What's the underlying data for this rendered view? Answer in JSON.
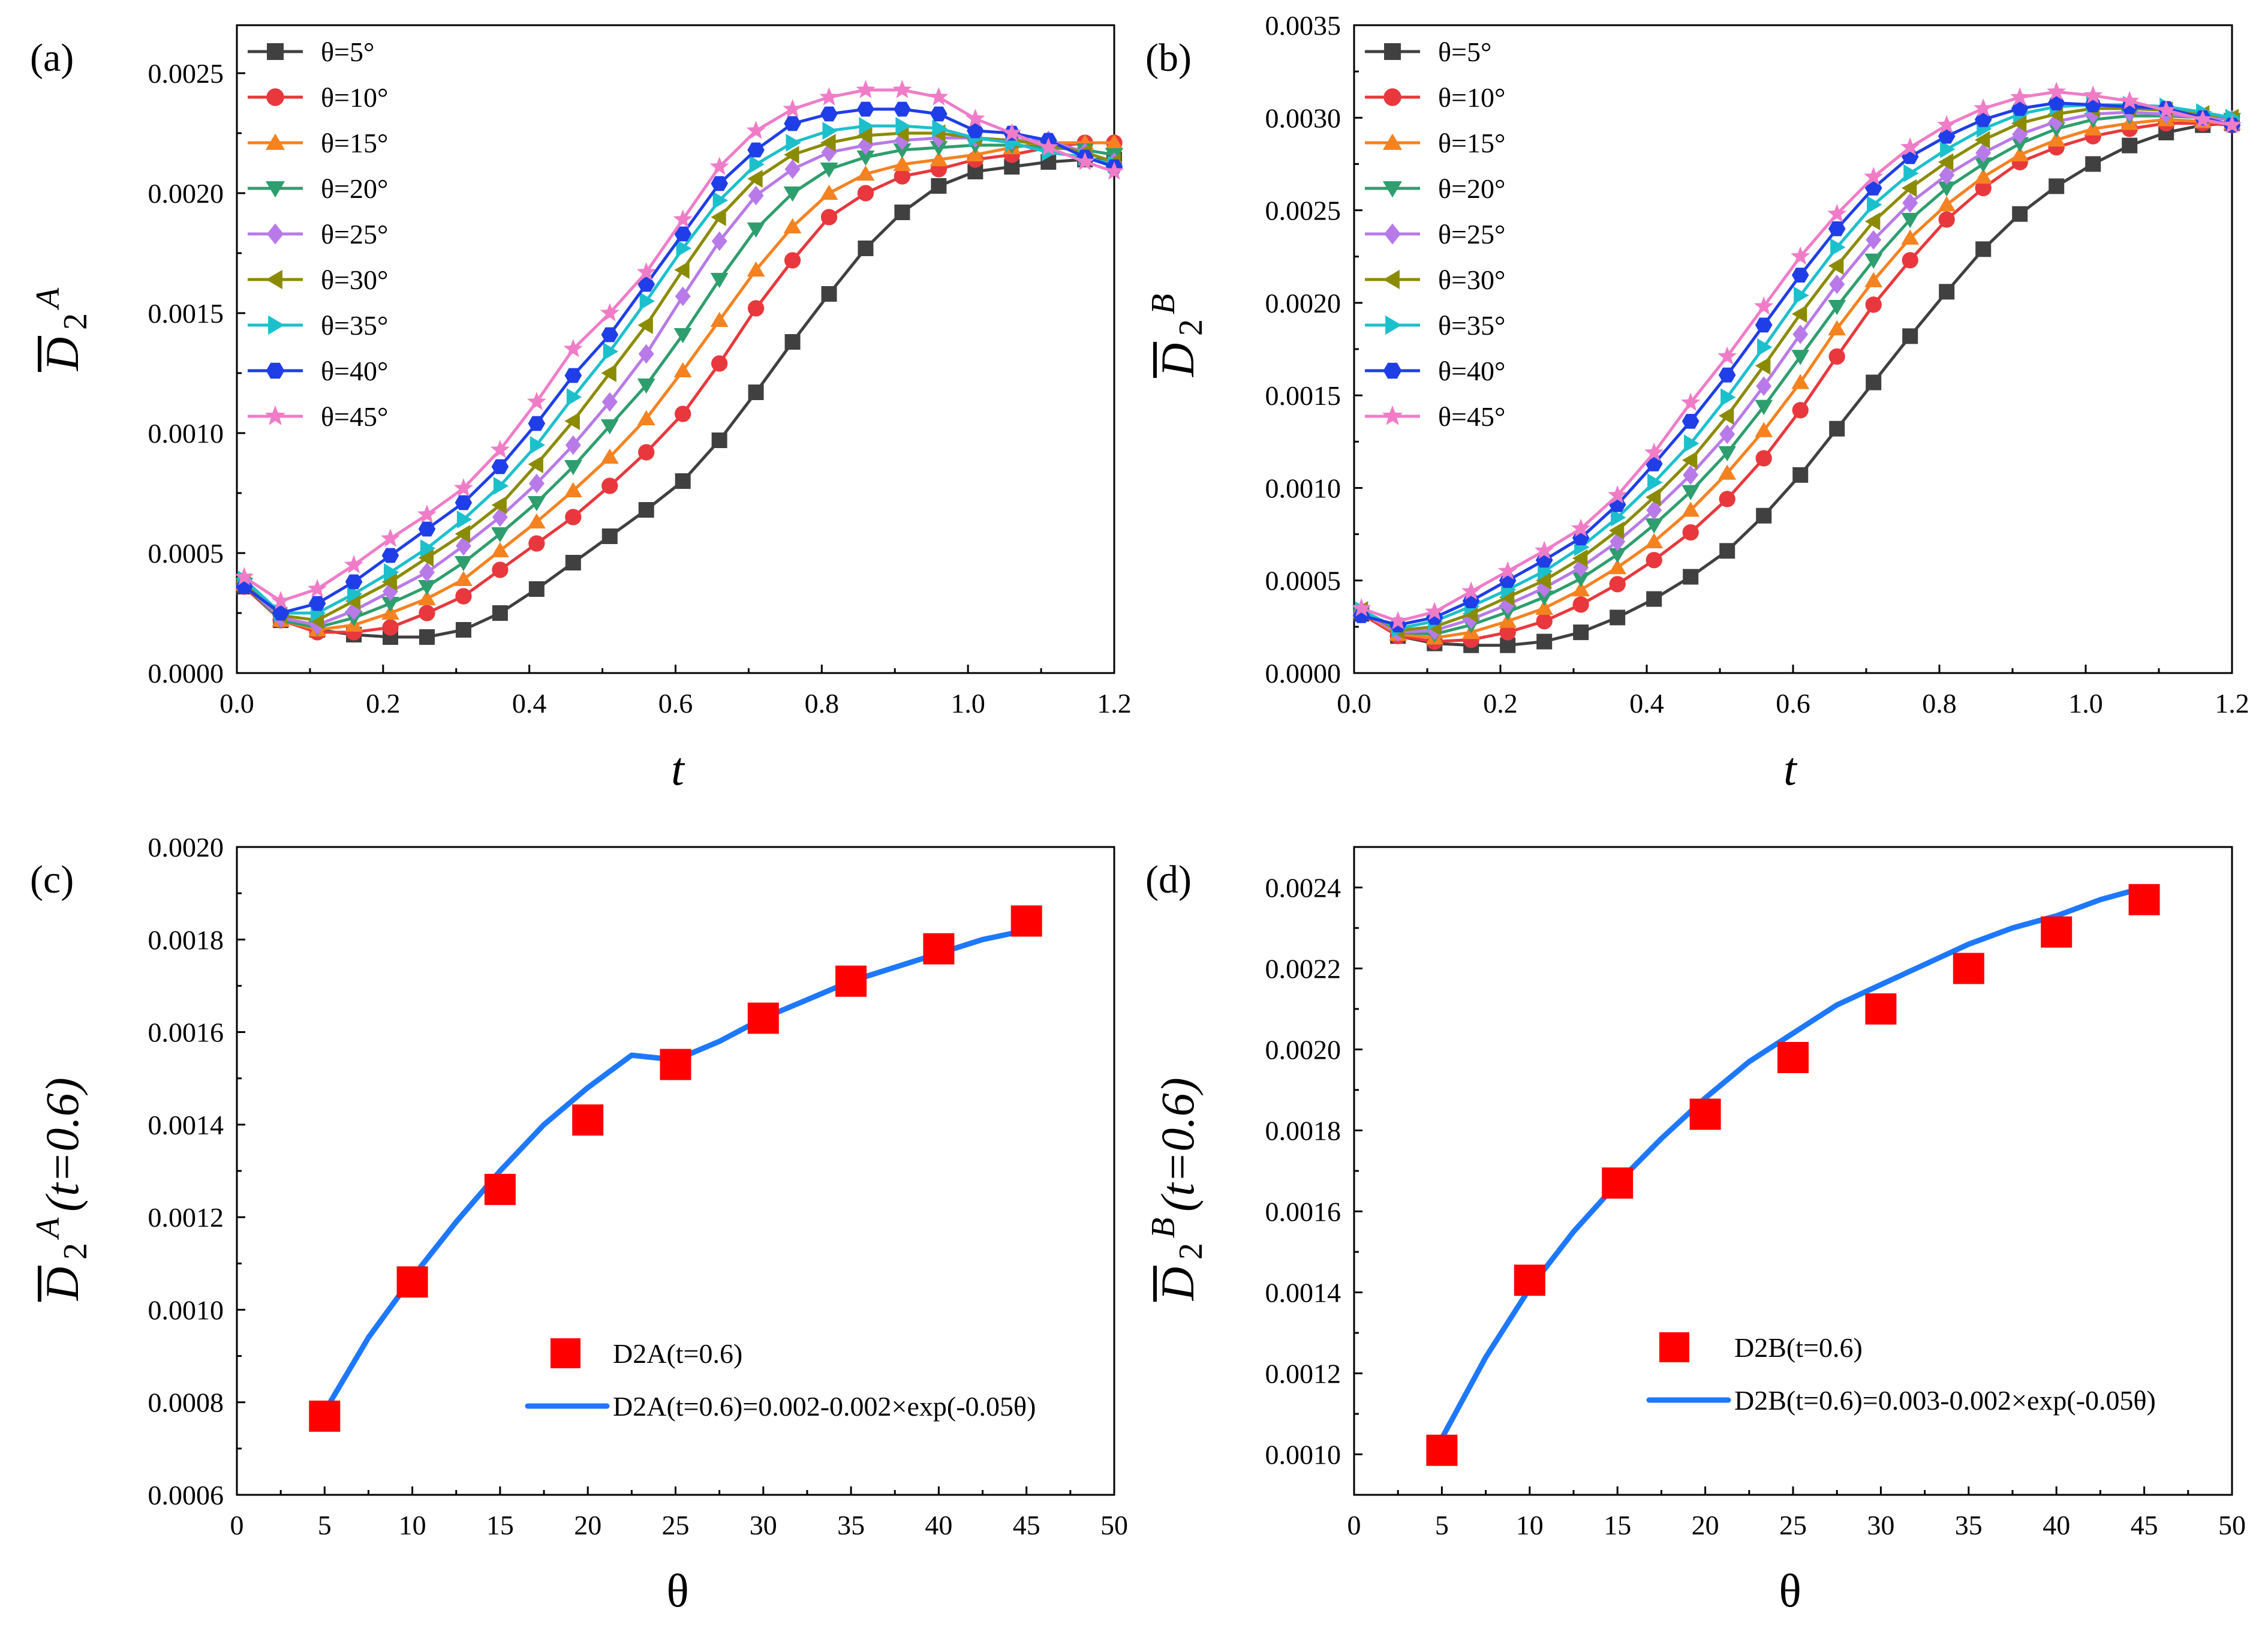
{
  "figure": {
    "panels": [
      {
        "id": "a",
        "label": "(a)",
        "xlabel": "t",
        "ylabel_main": "D",
        "ylabel_sub": "2",
        "ylabel_sup": "A",
        "ylabel_suffix": ""
      },
      {
        "id": "b",
        "label": "(b)",
        "xlabel": "t",
        "ylabel_main": "D",
        "ylabel_sub": "2",
        "ylabel_sup": "B",
        "ylabel_suffix": ""
      },
      {
        "id": "c",
        "label": "(c)",
        "xlabel": "θ",
        "ylabel_main": "D",
        "ylabel_sub": "2",
        "ylabel_sup": "A",
        "ylabel_suffix": "(t=0.6)",
        "legend_points": "D2A(t=0.6)",
        "legend_fit": "D2A(t=0.6)=0.002-0.002×exp(-0.05θ)"
      },
      {
        "id": "d",
        "label": "(d)",
        "xlabel": "θ",
        "ylabel_main": "D",
        "ylabel_sub": "2",
        "ylabel_sup": "B",
        "ylabel_suffix": "(t=0.6)",
        "legend_points": "D2B(t=0.6)",
        "legend_fit": "D2B(t=0.6)=0.003-0.002×exp(-0.05θ)"
      }
    ]
  },
  "chart_data": [
    {
      "type": "line",
      "panel": "(a)",
      "title": "",
      "xlabel": "t",
      "ylabel": "D̄2^A",
      "xlim": [
        0.0,
        1.2
      ],
      "ylim": [
        0.0,
        0.0027
      ],
      "xticks": [
        "0.0",
        "0.2",
        "0.4",
        "0.6",
        "0.8",
        "1.0",
        "1.2"
      ],
      "yticks": [
        "0.0000",
        "0.0005",
        "0.0010",
        "0.0015",
        "0.0020",
        "0.0025"
      ],
      "x": [
        0.01,
        0.06,
        0.11,
        0.16,
        0.21,
        0.26,
        0.31,
        0.36,
        0.41,
        0.46,
        0.51,
        0.56,
        0.61,
        0.66,
        0.71,
        0.76,
        0.81,
        0.86,
        0.91,
        0.96,
        1.01,
        1.06,
        1.11,
        1.16,
        1.2
      ],
      "series": [
        {
          "name": "θ=5°",
          "color": "#404040",
          "marker": "square",
          "values": [
            0.00036,
            0.00022,
            0.00018,
            0.00016,
            0.00015,
            0.00015,
            0.00018,
            0.00025,
            0.00035,
            0.00046,
            0.00057,
            0.00068,
            0.0008,
            0.00097,
            0.00117,
            0.00138,
            0.00158,
            0.00177,
            0.00192,
            0.00203,
            0.00209,
            0.00211,
            0.00213,
            0.00214,
            0.00214
          ]
        },
        {
          "name": "θ=10°",
          "color": "#e8383d",
          "marker": "circle",
          "values": [
            0.00036,
            0.00022,
            0.00017,
            0.00017,
            0.00019,
            0.00025,
            0.00032,
            0.00043,
            0.00054,
            0.00065,
            0.00078,
            0.00092,
            0.00108,
            0.00129,
            0.00152,
            0.00172,
            0.0019,
            0.002,
            0.00207,
            0.0021,
            0.00214,
            0.00216,
            0.00219,
            0.00221,
            0.00221
          ]
        },
        {
          "name": "θ=15°",
          "color": "#f58220",
          "marker": "triangle-up",
          "values": [
            0.00037,
            0.00022,
            0.00018,
            0.0002,
            0.00025,
            0.00031,
            0.00039,
            0.00051,
            0.00063,
            0.00076,
            0.0009,
            0.00106,
            0.00126,
            0.00147,
            0.00168,
            0.00186,
            0.002,
            0.00208,
            0.00212,
            0.00214,
            0.00216,
            0.00219,
            0.00221,
            0.00221,
            0.00221
          ]
        },
        {
          "name": "θ=20°",
          "color": "#2e9e6e",
          "marker": "triangle-down",
          "values": [
            0.00037,
            0.00022,
            0.00019,
            0.00023,
            0.00029,
            0.00036,
            0.00046,
            0.00058,
            0.00071,
            0.00086,
            0.00103,
            0.0012,
            0.00141,
            0.00164,
            0.00185,
            0.002,
            0.0021,
            0.00215,
            0.00218,
            0.00219,
            0.0022,
            0.0022,
            0.00219,
            0.00218,
            0.00216
          ]
        },
        {
          "name": "θ=25°",
          "color": "#b87ae8",
          "marker": "diamond",
          "values": [
            0.00037,
            0.00023,
            0.0002,
            0.00026,
            0.00034,
            0.00042,
            0.00053,
            0.00065,
            0.00079,
            0.00095,
            0.00113,
            0.00133,
            0.00157,
            0.0018,
            0.00199,
            0.0021,
            0.00217,
            0.0022,
            0.00222,
            0.00223,
            0.00223,
            0.00222,
            0.00222,
            0.00217,
            0.00213
          ]
        },
        {
          "name": "θ=30°",
          "color": "#8b8b00",
          "marker": "triangle-left",
          "values": [
            0.00038,
            0.00024,
            0.00022,
            0.0003,
            0.00038,
            0.00048,
            0.00058,
            0.0007,
            0.00087,
            0.00105,
            0.00125,
            0.00145,
            0.00168,
            0.0019,
            0.00206,
            0.00216,
            0.00221,
            0.00224,
            0.00225,
            0.00225,
            0.00223,
            0.00222,
            0.0022,
            0.00217,
            0.00213
          ]
        },
        {
          "name": "θ=35°",
          "color": "#1cc0cc",
          "marker": "triangle-right",
          "values": [
            0.00039,
            0.00025,
            0.00025,
            0.00033,
            0.00042,
            0.00052,
            0.00064,
            0.00078,
            0.00095,
            0.00115,
            0.00134,
            0.00155,
            0.00177,
            0.00197,
            0.00212,
            0.00221,
            0.00226,
            0.00228,
            0.00228,
            0.00227,
            0.00223,
            0.00221,
            0.00217,
            0.00215,
            0.00212
          ]
        },
        {
          "name": "θ=40°",
          "color": "#1f3ee8",
          "marker": "hexagon",
          "values": [
            0.00036,
            0.00025,
            0.00029,
            0.00038,
            0.00049,
            0.0006,
            0.00071,
            0.00086,
            0.00104,
            0.00124,
            0.00141,
            0.00162,
            0.00183,
            0.00204,
            0.00218,
            0.00229,
            0.00233,
            0.00235,
            0.00235,
            0.00233,
            0.00226,
            0.00225,
            0.00222,
            0.00215,
            0.00211
          ]
        },
        {
          "name": "θ=45°",
          "color": "#f07cc8",
          "marker": "star",
          "values": [
            0.0004,
            0.0003,
            0.00035,
            0.00045,
            0.00056,
            0.00066,
            0.00077,
            0.00093,
            0.00113,
            0.00135,
            0.0015,
            0.00167,
            0.00189,
            0.00211,
            0.00226,
            0.00235,
            0.0024,
            0.00243,
            0.00243,
            0.0024,
            0.00231,
            0.00225,
            0.00219,
            0.00213,
            0.00209
          ]
        }
      ],
      "legend": "top-left"
    },
    {
      "type": "line",
      "panel": "(b)",
      "title": "",
      "xlabel": "t",
      "ylabel": "D̄2^B",
      "xlim": [
        0.0,
        1.2
      ],
      "ylim": [
        0.0,
        0.0035
      ],
      "xticks": [
        "0.0",
        "0.2",
        "0.4",
        "0.6",
        "0.8",
        "1.0",
        "1.2"
      ],
      "yticks": [
        "0.0000",
        "0.0005",
        "0.0010",
        "0.0015",
        "0.0020",
        "0.0025",
        "0.0030",
        "0.0035"
      ],
      "x": [
        0.01,
        0.06,
        0.11,
        0.16,
        0.21,
        0.26,
        0.31,
        0.36,
        0.41,
        0.46,
        0.51,
        0.56,
        0.61,
        0.66,
        0.71,
        0.76,
        0.81,
        0.86,
        0.91,
        0.96,
        1.01,
        1.06,
        1.11,
        1.16,
        1.2
      ],
      "series": [
        {
          "name": "θ=5°",
          "color": "#404040",
          "marker": "square",
          "values": [
            0.00032,
            0.0002,
            0.00016,
            0.00015,
            0.00015,
            0.00017,
            0.00022,
            0.0003,
            0.0004,
            0.00052,
            0.00066,
            0.00085,
            0.00107,
            0.00132,
            0.00157,
            0.00182,
            0.00206,
            0.00229,
            0.00248,
            0.00263,
            0.00275,
            0.00285,
            0.00292,
            0.00296,
            0.00297
          ]
        },
        {
          "name": "θ=10°",
          "color": "#e8383d",
          "marker": "circle",
          "values": [
            0.00032,
            0.0002,
            0.00017,
            0.00018,
            0.00022,
            0.00028,
            0.00037,
            0.00048,
            0.00061,
            0.00076,
            0.00094,
            0.00116,
            0.00142,
            0.00171,
            0.00199,
            0.00223,
            0.00245,
            0.00262,
            0.00276,
            0.00284,
            0.0029,
            0.00294,
            0.00297,
            0.00297,
            0.00296
          ]
        },
        {
          "name": "θ=15°",
          "color": "#f58220",
          "marker": "triangle-up",
          "values": [
            0.00033,
            0.00021,
            0.00019,
            0.00022,
            0.00028,
            0.00035,
            0.00045,
            0.00057,
            0.00071,
            0.00088,
            0.00108,
            0.00131,
            0.00157,
            0.00186,
            0.00212,
            0.00235,
            0.00253,
            0.00268,
            0.0028,
            0.00288,
            0.00294,
            0.00297,
            0.00299,
            0.00298,
            0.00297
          ]
        },
        {
          "name": "θ=20°",
          "color": "#2e9e6e",
          "marker": "triangle-down",
          "values": [
            0.00033,
            0.00022,
            0.00021,
            0.00026,
            0.00033,
            0.00041,
            0.00051,
            0.00064,
            0.0008,
            0.00098,
            0.00119,
            0.00144,
            0.00171,
            0.00198,
            0.00223,
            0.00245,
            0.00262,
            0.00275,
            0.00286,
            0.00294,
            0.00299,
            0.00301,
            0.00301,
            0.003,
            0.00299
          ]
        },
        {
          "name": "θ=25°",
          "color": "#b87ae8",
          "marker": "diamond",
          "values": [
            0.00033,
            0.00022,
            0.00023,
            0.00029,
            0.00037,
            0.00046,
            0.00057,
            0.00071,
            0.00088,
            0.00107,
            0.00129,
            0.00155,
            0.00183,
            0.0021,
            0.00234,
            0.00254,
            0.00269,
            0.00281,
            0.00291,
            0.00298,
            0.00302,
            0.00303,
            0.00302,
            0.003,
            0.00299
          ]
        },
        {
          "name": "θ=30°",
          "color": "#8b8b00",
          "marker": "triangle-left",
          "values": [
            0.00034,
            0.00023,
            0.00025,
            0.00032,
            0.00041,
            0.0005,
            0.00062,
            0.00077,
            0.00095,
            0.00115,
            0.00139,
            0.00166,
            0.00194,
            0.0022,
            0.00244,
            0.00262,
            0.00276,
            0.00288,
            0.00297,
            0.00302,
            0.00305,
            0.00305,
            0.00304,
            0.00302,
            0.003
          ]
        },
        {
          "name": "θ=35°",
          "color": "#1cc0cc",
          "marker": "triangle-right",
          "values": [
            0.00034,
            0.00024,
            0.00028,
            0.00036,
            0.00045,
            0.00055,
            0.00068,
            0.00084,
            0.00103,
            0.00124,
            0.00149,
            0.00176,
            0.00204,
            0.0023,
            0.00253,
            0.0027,
            0.00283,
            0.00294,
            0.00302,
            0.00306,
            0.00307,
            0.00307,
            0.00306,
            0.00303,
            0.003
          ]
        },
        {
          "name": "θ=40°",
          "color": "#1f3ee8",
          "marker": "hexagon",
          "values": [
            0.00031,
            0.00026,
            0.0003,
            0.00039,
            0.0005,
            0.00061,
            0.00073,
            0.00091,
            0.00113,
            0.00136,
            0.00161,
            0.00188,
            0.00215,
            0.0024,
            0.00262,
            0.00279,
            0.0029,
            0.00299,
            0.00305,
            0.00308,
            0.00307,
            0.00306,
            0.00305,
            0.003,
            0.00296
          ]
        },
        {
          "name": "θ=45°",
          "color": "#f07cc8",
          "marker": "star",
          "values": [
            0.00035,
            0.00028,
            0.00033,
            0.00044,
            0.00055,
            0.00066,
            0.00078,
            0.00096,
            0.00119,
            0.00146,
            0.00171,
            0.00198,
            0.00225,
            0.00248,
            0.00268,
            0.00284,
            0.00296,
            0.00305,
            0.00311,
            0.00314,
            0.00312,
            0.00309,
            0.00304,
            0.00299,
            0.00296
          ]
        }
      ],
      "legend": "top-left"
    },
    {
      "type": "scatter",
      "panel": "(c)",
      "title": "",
      "xlabel": "θ",
      "ylabel": "D̄2^A(t=0.6)",
      "xlim": [
        0,
        50
      ],
      "ylim": [
        0.0006,
        0.002
      ],
      "xticks": [
        "0",
        "5",
        "10",
        "15",
        "20",
        "25",
        "30",
        "35",
        "40",
        "45",
        "50"
      ],
      "yticks": [
        "0.0006",
        "0.0008",
        "0.0010",
        "0.0012",
        "0.0014",
        "0.0016",
        "0.0018",
        "0.0020"
      ],
      "series": [
        {
          "name": "D2A(t=0.6)",
          "color": "#ff0000",
          "marker": "square",
          "x": [
            5,
            10,
            15,
            20,
            25,
            30,
            35,
            40,
            45
          ],
          "values": [
            0.00077,
            0.00106,
            0.00126,
            0.00141,
            0.00153,
            0.00163,
            0.00171,
            0.00178,
            0.00184
          ]
        },
        {
          "name": "D2A(t=0.6)=0.002-0.002×exp(-0.05θ)",
          "color": "#1e78ff",
          "marker": "none",
          "x": [
            5,
            7.5,
            10,
            12.5,
            15,
            17.5,
            20,
            22.5,
            25,
            27.5,
            30,
            32.5,
            35,
            37.5,
            40,
            42.5,
            45
          ],
          "values": [
            0.00078,
            0.00094,
            0.00107,
            0.00119,
            0.0013,
            0.0014,
            0.00148,
            0.00155,
            0.00154,
            0.00158,
            0.00163,
            0.00167,
            0.00171,
            0.00174,
            0.00177,
            0.0018,
            0.00182
          ]
        }
      ],
      "legend": "bottom-right"
    },
    {
      "type": "scatter",
      "panel": "(d)",
      "title": "",
      "xlabel": "θ",
      "ylabel": "D̄2^B(t=0.6)",
      "xlim": [
        0,
        50
      ],
      "ylim": [
        0.0009,
        0.0025
      ],
      "xticks": [
        "0",
        "5",
        "10",
        "15",
        "20",
        "25",
        "30",
        "35",
        "40",
        "45",
        "50"
      ],
      "yticks": [
        "0.0010",
        "0.0012",
        "0.0014",
        "0.0016",
        "0.0018",
        "0.0020",
        "0.0022",
        "0.0024"
      ],
      "series": [
        {
          "name": "D2B(t=0.6)",
          "color": "#ff0000",
          "marker": "square",
          "x": [
            5,
            10,
            15,
            20,
            25,
            30,
            35,
            40,
            45
          ],
          "values": [
            0.00101,
            0.00143,
            0.00167,
            0.00184,
            0.00198,
            0.0021,
            0.0022,
            0.00229,
            0.00237
          ]
        },
        {
          "name": "D2B(t=0.6)=0.003-0.002×exp(-0.05θ)",
          "color": "#1e78ff",
          "marker": "none",
          "x": [
            5,
            7.5,
            10,
            12.5,
            15,
            17.5,
            20,
            22.5,
            25,
            27.5,
            30,
            32.5,
            35,
            37.5,
            40,
            42.5,
            45
          ],
          "values": [
            0.00104,
            0.00124,
            0.00141,
            0.00155,
            0.00167,
            0.00178,
            0.00188,
            0.00197,
            0.00204,
            0.00211,
            0.00216,
            0.00221,
            0.00226,
            0.0023,
            0.00233,
            0.00237,
            0.0024
          ]
        }
      ],
      "legend": "bottom-right"
    }
  ]
}
